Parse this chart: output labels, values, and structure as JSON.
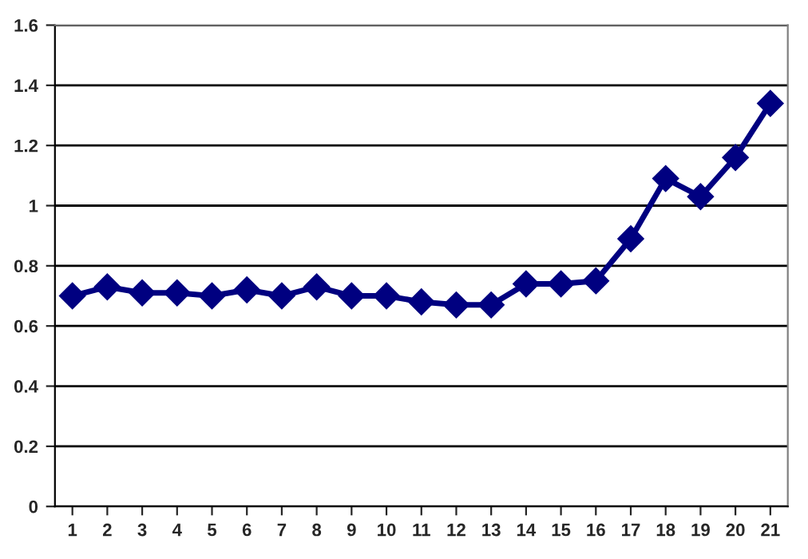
{
  "chart_data": {
    "type": "line",
    "categories": [
      "1",
      "2",
      "3",
      "4",
      "5",
      "6",
      "7",
      "8",
      "9",
      "10",
      "11",
      "12",
      "13",
      "14",
      "15",
      "16",
      "17",
      "18",
      "19",
      "20",
      "21"
    ],
    "series": [
      {
        "color": "#000080",
        "values": [
          0.7,
          0.73,
          0.71,
          0.71,
          0.7,
          0.72,
          0.7,
          0.73,
          0.7,
          0.7,
          0.68,
          0.67,
          0.67,
          0.74,
          0.74,
          0.75,
          0.89,
          1.09,
          1.03,
          1.16,
          1.34
        ]
      }
    ],
    "ylim": [
      0,
      1.6
    ],
    "yticks": [
      0,
      0.2,
      0.4,
      0.6,
      0.8,
      1,
      1.2,
      1.4,
      1.6
    ],
    "grid": "y",
    "marker": "diamond",
    "line_style": "solid"
  }
}
